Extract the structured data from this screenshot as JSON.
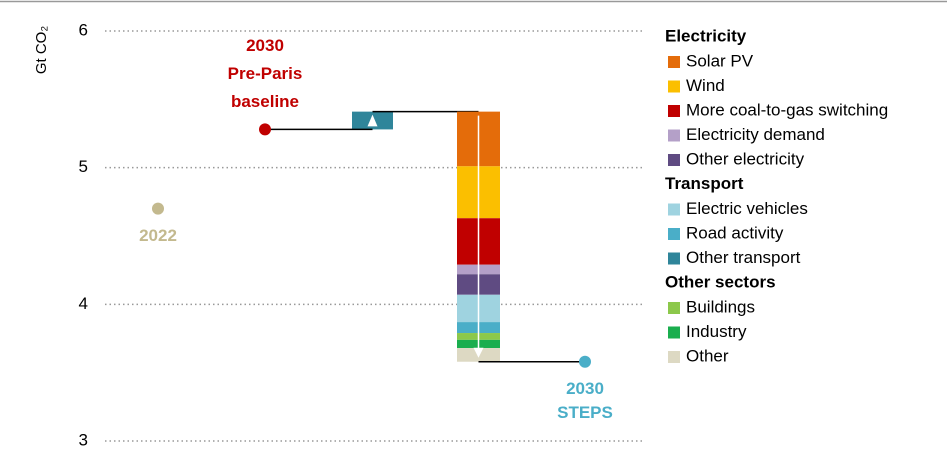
{
  "chart_data": {
    "type": "waterfall",
    "ylabel": "Gt CO₂",
    "ylim": [
      3,
      6
    ],
    "yticks": [
      3,
      4,
      5,
      6
    ],
    "grid": true,
    "points": [
      {
        "label": [
          "2022"
        ],
        "value": 4.7,
        "color": "#c3b98e"
      },
      {
        "label": [
          "2030",
          "Pre-Paris",
          "baseline"
        ],
        "value": 5.28,
        "color": "#c00000"
      },
      {
        "label": [
          "2030",
          "STEPS"
        ],
        "value": 3.58,
        "color": "#4aaec8"
      }
    ],
    "groups": [
      {
        "name": "Electricity",
        "series": [
          {
            "name": "Solar PV",
            "color": "#e46c0a",
            "value": -0.4
          },
          {
            "name": "Wind",
            "color": "#fbbf00",
            "value": -0.38
          },
          {
            "name": "More coal-to-gas switching",
            "color": "#c00000",
            "value": -0.34
          },
          {
            "name": "Electricity demand",
            "color": "#b4a0c8",
            "value": -0.07
          },
          {
            "name": "Other electricity",
            "color": "#5f4b82",
            "value": -0.15
          }
        ]
      },
      {
        "name": "Transport",
        "series": [
          {
            "name": "Electric vehicles",
            "color": "#9fd3e0",
            "value": -0.2
          },
          {
            "name": "Road activity",
            "color": "#4aaec8",
            "value": -0.08
          },
          {
            "name": "Other transport",
            "color": "#2f859a",
            "value": 0.13
          }
        ]
      },
      {
        "name": "Other sectors",
        "series": [
          {
            "name": "Buildings",
            "color": "#8cc84b",
            "value": -0.05
          },
          {
            "name": "Industry",
            "color": "#1aae4e",
            "value": -0.06
          },
          {
            "name": "Other",
            "color": "#ddd9c3",
            "value": -0.1
          }
        ]
      }
    ]
  }
}
